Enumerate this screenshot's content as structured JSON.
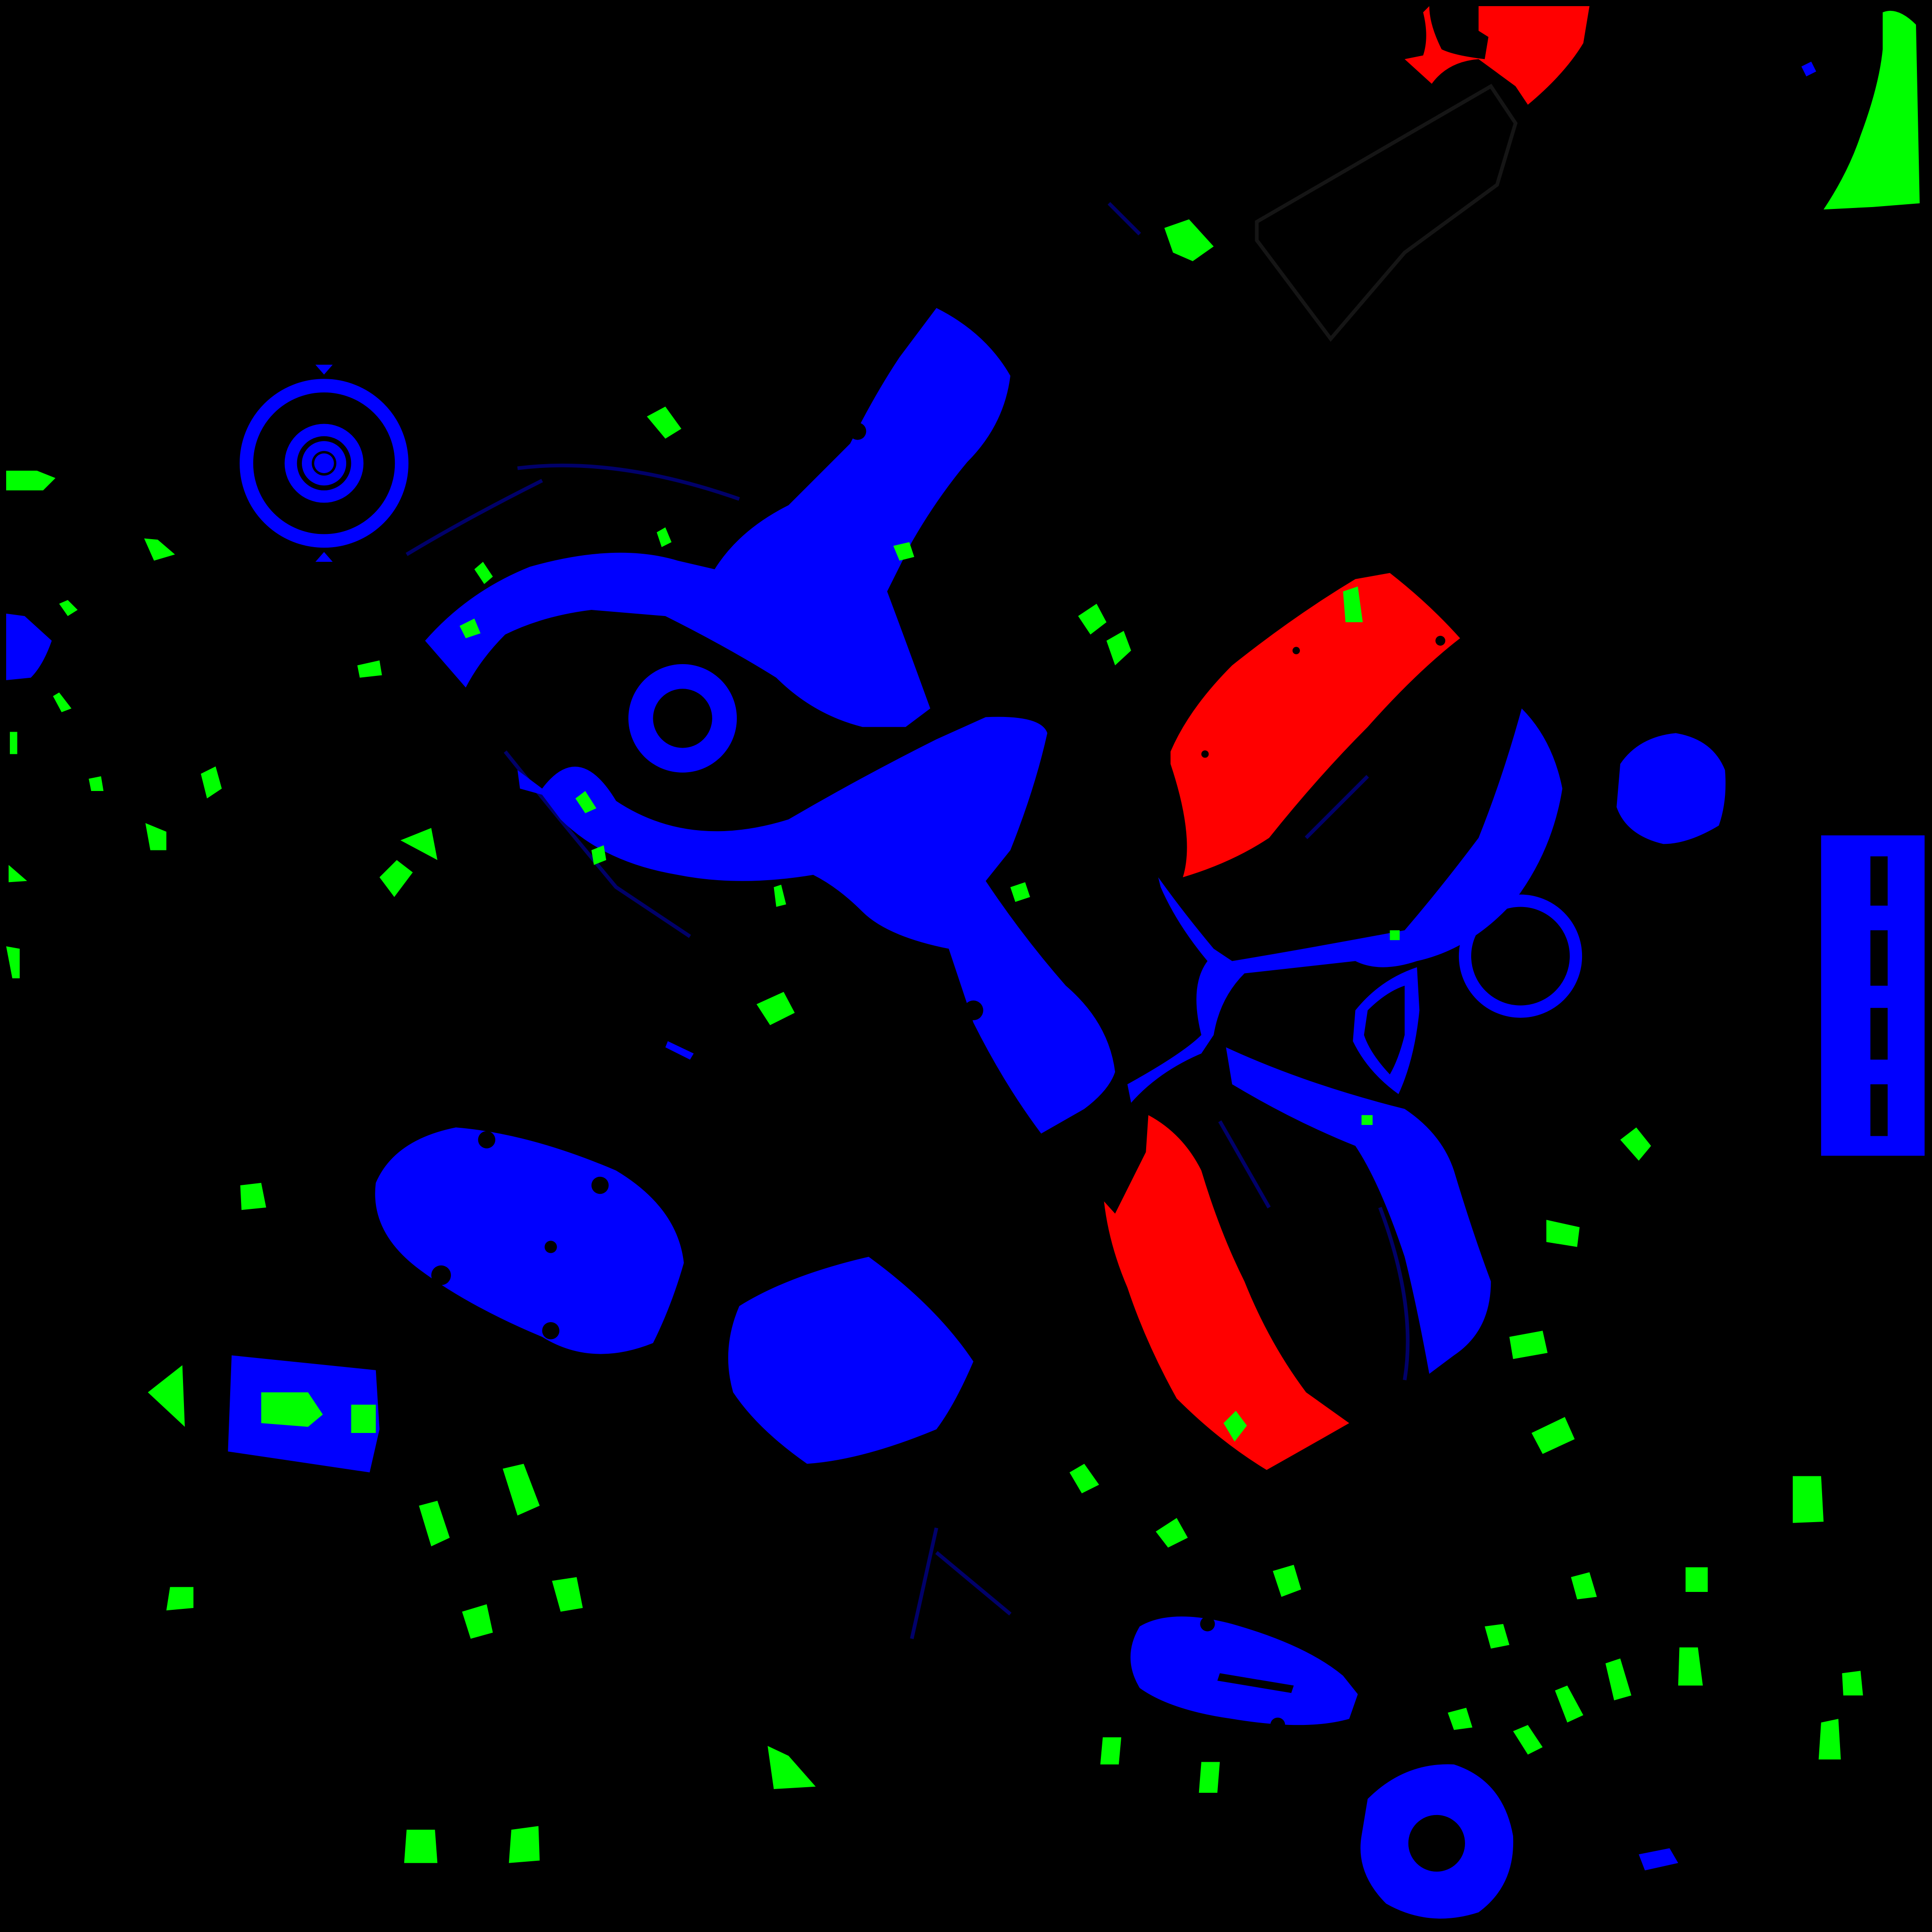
{
  "image": {
    "kind": "UV texture / ID mask",
    "background_color": "#000000",
    "mask_colors": {
      "blue": "#0000ff",
      "red": "#ff0000",
      "green": "#00ff00"
    }
  }
}
